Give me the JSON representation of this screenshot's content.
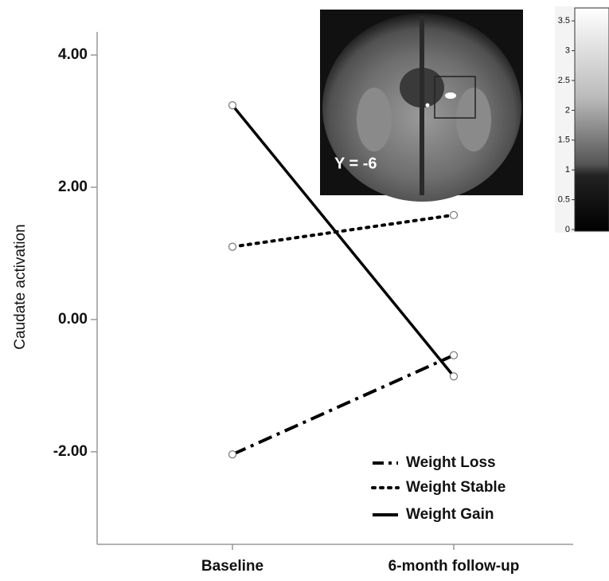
{
  "chart_data": {
    "type": "line",
    "y_label": "Caudate activation",
    "categories": [
      "Baseline",
      "6-month follow-up"
    ],
    "series": [
      {
        "name": "Weight Loss",
        "color": "#000000",
        "style": "dashdot",
        "values": [
          -2.04,
          -0.54
        ]
      },
      {
        "name": "Weight Stable",
        "color": "#000000",
        "style": "dotted",
        "values": [
          1.1,
          1.58
        ]
      },
      {
        "name": "Weight Gain",
        "color": "#000000",
        "style": "solid",
        "values": [
          3.24,
          -0.86
        ]
      }
    ],
    "ylim": [
      -3.4,
      4.35
    ],
    "yticks": [
      {
        "value": 4,
        "label": "4.00"
      },
      {
        "value": 2,
        "label": "2.00"
      },
      {
        "value": 0,
        "label": "0.00"
      },
      {
        "value": -2,
        "label": "-2.00"
      }
    ],
    "legend": "lower right",
    "inset": {
      "annotation": "Y = -6",
      "colorbar": {
        "lim": [
          0,
          3.77
        ],
        "ticks": [
          0,
          0.5,
          1,
          1.5,
          2,
          2.5,
          3,
          3.5
        ]
      }
    }
  }
}
